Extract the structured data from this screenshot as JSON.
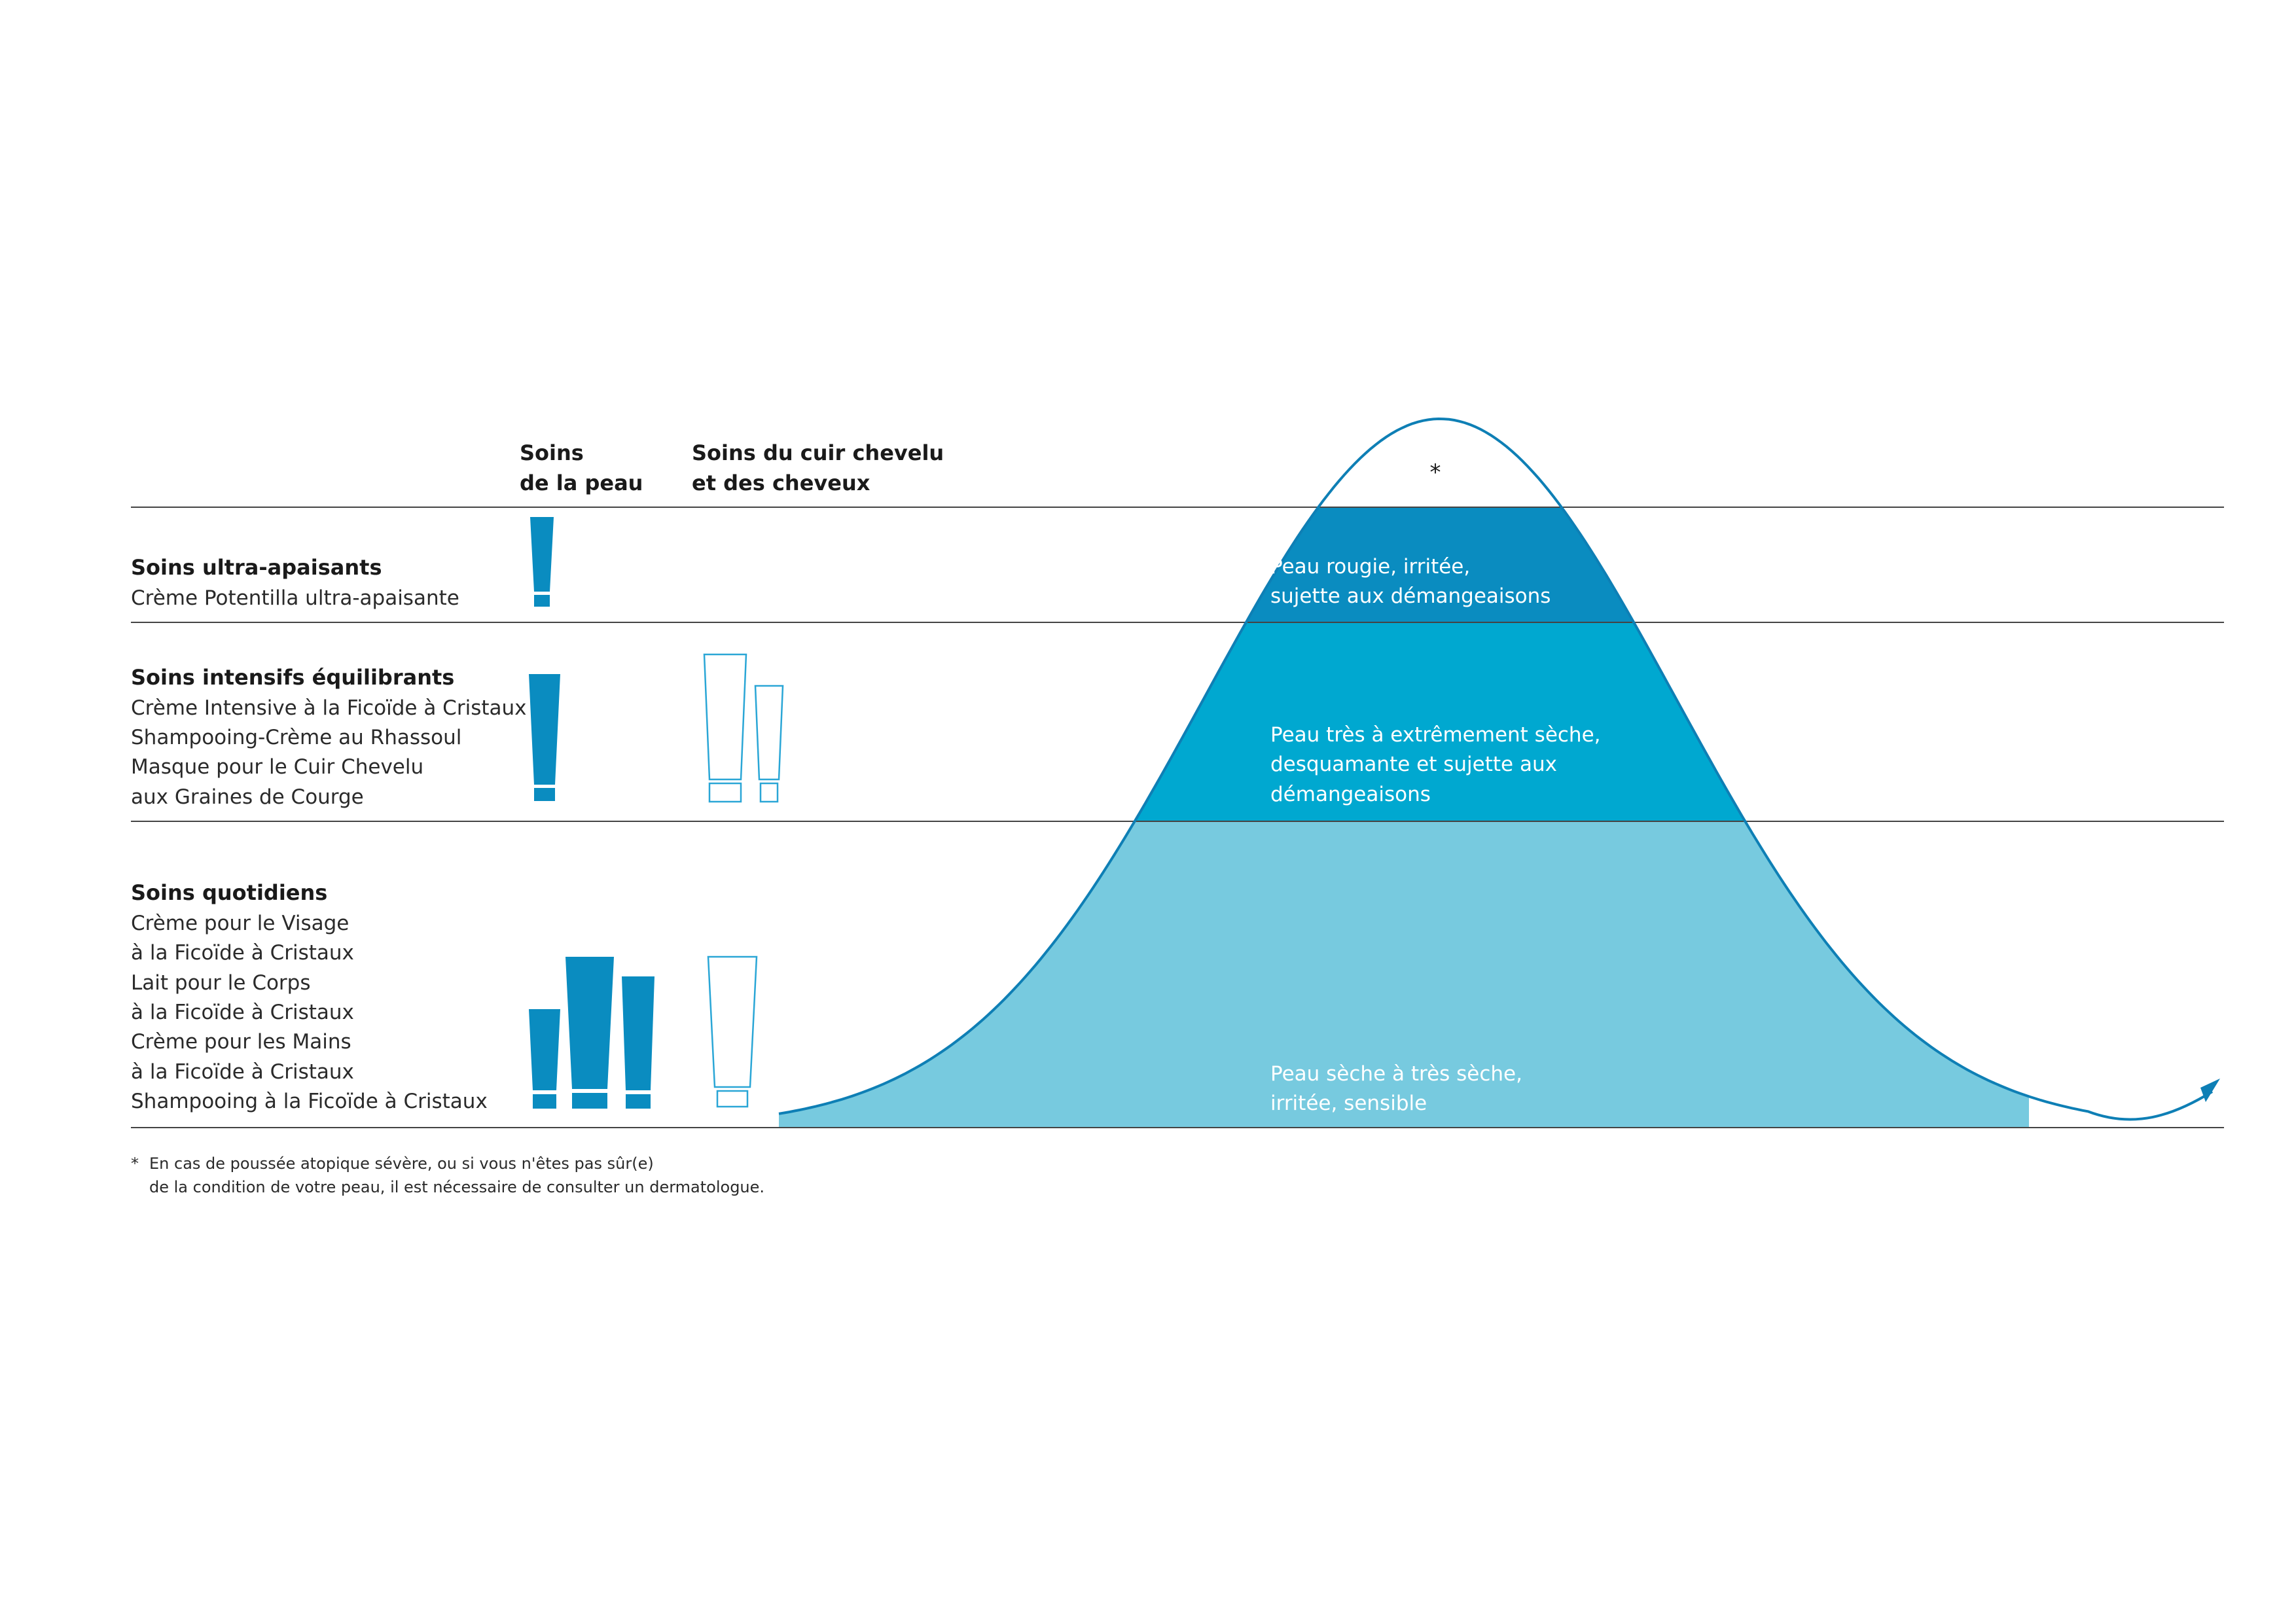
{
  "colors": {
    "band_dark": "#0a8cc0",
    "band_mid": "#00a8d0",
    "band_light": "#77cadf",
    "curve": "#0e7fb5",
    "tube_filled": "#0a8cc0",
    "tube_outline": "#2aa6d6",
    "rule": "#444444"
  },
  "headers": {
    "skin_line1": "Soins",
    "skin_line2": "de la peau",
    "scalp_line1": "Soins du cuir chevelu",
    "scalp_line2": "et des cheveux"
  },
  "tiers": [
    {
      "title": "Soins ultra-apaisants",
      "products": [
        "Crème Potentilla ultra-apaisante"
      ],
      "band_lines": [
        "Peau rougie, irritée,",
        "sujette aux démangeaisons"
      ]
    },
    {
      "title": "Soins intensifs équilibrants",
      "products": [
        "Crème Intensive à la Ficoïde à Cristaux",
        "Shampooing-Crème au Rhassoul",
        "Masque pour le Cuir Chevelu",
        "aux Graines de Courge"
      ],
      "band_lines": [
        "Peau très à extrêmement sèche,",
        "desquamante et sujette aux",
        "démangeaisons"
      ]
    },
    {
      "title": "Soins quotidiens",
      "products": [
        "Crème pour le Visage",
        "à la Ficoïde à Cristaux",
        "Lait pour le Corps",
        "à la Ficoïde à Cristaux",
        "Crème pour les Mains",
        "à la Ficoïde à Cristaux",
        "Shampooing à la Ficoïde à Cristaux"
      ],
      "band_lines": [
        "Peau sèche à très sèche,",
        "irritée, sensible"
      ]
    }
  ],
  "peak_marker": "*",
  "footnote": {
    "marker": "*",
    "line1": "En cas de poussée atopique sévère, ou si vous n'êtes pas sûr(e)",
    "line2": "de la condition de votre peau, il est nécessaire de consulter un dermatologue."
  },
  "icons": {
    "skin_tube": "filled-tube-icon",
    "scalp_tube": "outline-tube-icon",
    "arrow": "arrow-head-icon"
  }
}
